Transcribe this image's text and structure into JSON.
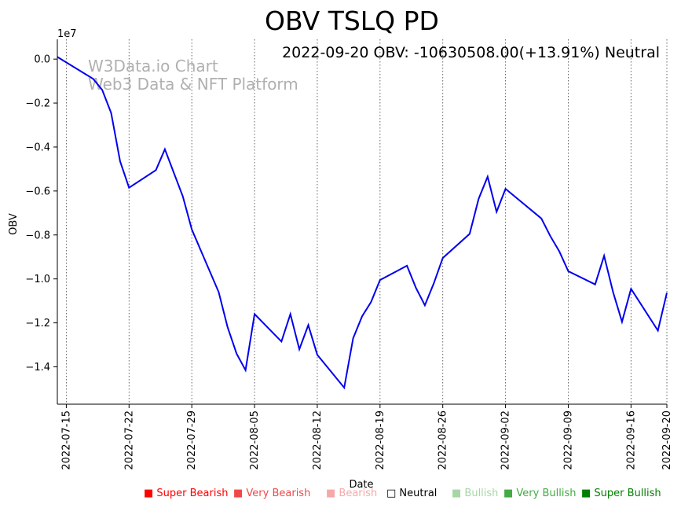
{
  "chart_data": {
    "type": "line",
    "title": "OBV TSLQ PD",
    "info_text": "2022-09-20 OBV: -10630508.00(+13.91%) Neutral",
    "watermark": [
      "W3Data.io Chart",
      "Web3 Data & NFT Platform"
    ],
    "xlabel": "Date",
    "ylabel": "OBV",
    "y_multiplier_label": "1e7",
    "ylim": [
      -1.57,
      0.09
    ],
    "y_ticks": [
      0.0,
      -0.2,
      -0.4,
      -0.6,
      -0.8,
      -1.0,
      -1.2,
      -1.4
    ],
    "y_tick_labels": [
      "0.0",
      "−0.2",
      "−0.4",
      "−0.6",
      "−0.8",
      "−1.0",
      "−1.2",
      "−1.4"
    ],
    "x_range": [
      "2022-07-14",
      "2022-09-20"
    ],
    "x_ticks": [
      "2022-07-15",
      "2022-07-22",
      "2022-07-29",
      "2022-08-05",
      "2022-08-12",
      "2022-08-19",
      "2022-08-26",
      "2022-09-02",
      "2022-09-09",
      "2022-09-16",
      "2022-09-20"
    ],
    "line_color": "#0000ee",
    "grid": "vertical dotted at x ticks",
    "series": [
      {
        "name": "OBV",
        "x": [
          "2022-07-14",
          "2022-07-18",
          "2022-07-19",
          "2022-07-20",
          "2022-07-21",
          "2022-07-22",
          "2022-07-25",
          "2022-07-26",
          "2022-07-28",
          "2022-07-29",
          "2022-08-01",
          "2022-08-02",
          "2022-08-03",
          "2022-08-04",
          "2022-08-05",
          "2022-08-08",
          "2022-08-09",
          "2022-08-10",
          "2022-08-11",
          "2022-08-12",
          "2022-08-15",
          "2022-08-16",
          "2022-08-17",
          "2022-08-18",
          "2022-08-19",
          "2022-08-22",
          "2022-08-23",
          "2022-08-24",
          "2022-08-25",
          "2022-08-26",
          "2022-08-29",
          "2022-08-30",
          "2022-08-31",
          "2022-09-01",
          "2022-09-02",
          "2022-09-06",
          "2022-09-07",
          "2022-09-08",
          "2022-09-09",
          "2022-09-12",
          "2022-09-13",
          "2022-09-14",
          "2022-09-15",
          "2022-09-16",
          "2022-09-19",
          "2022-09-20"
        ],
        "values": [
          0.01,
          -0.09,
          -0.14,
          -0.245,
          -0.465,
          -0.585,
          -0.505,
          -0.41,
          -0.625,
          -0.775,
          -1.06,
          -1.22,
          -1.34,
          -1.415,
          -1.16,
          -1.285,
          -1.16,
          -1.32,
          -1.21,
          -1.345,
          -1.495,
          -1.27,
          -1.17,
          -1.105,
          -1.005,
          -0.94,
          -1.04,
          -1.12,
          -1.02,
          -0.905,
          -0.795,
          -0.635,
          -0.535,
          -0.695,
          -0.59,
          -0.725,
          -0.805,
          -0.875,
          -0.965,
          -1.025,
          -0.895,
          -1.06,
          -1.195,
          -1.045,
          -1.235,
          -1.063
        ]
      }
    ]
  },
  "legend": [
    {
      "label": "Super Bearish",
      "color": "#ff0000",
      "marker": "■"
    },
    {
      "label": "Very Bearish",
      "color": "#f04848",
      "marker": "■"
    },
    {
      "label": "Bearish",
      "color": "#f6a8a8",
      "marker": "■"
    },
    {
      "label": "Neutral",
      "color": "#000000",
      "marker": "□"
    },
    {
      "label": "Bullish",
      "color": "#a6d6a6",
      "marker": "■"
    },
    {
      "label": "Very Bullish",
      "color": "#44aa44",
      "marker": "■"
    },
    {
      "label": "Super Bullish",
      "color": "#008000",
      "marker": "■"
    }
  ]
}
